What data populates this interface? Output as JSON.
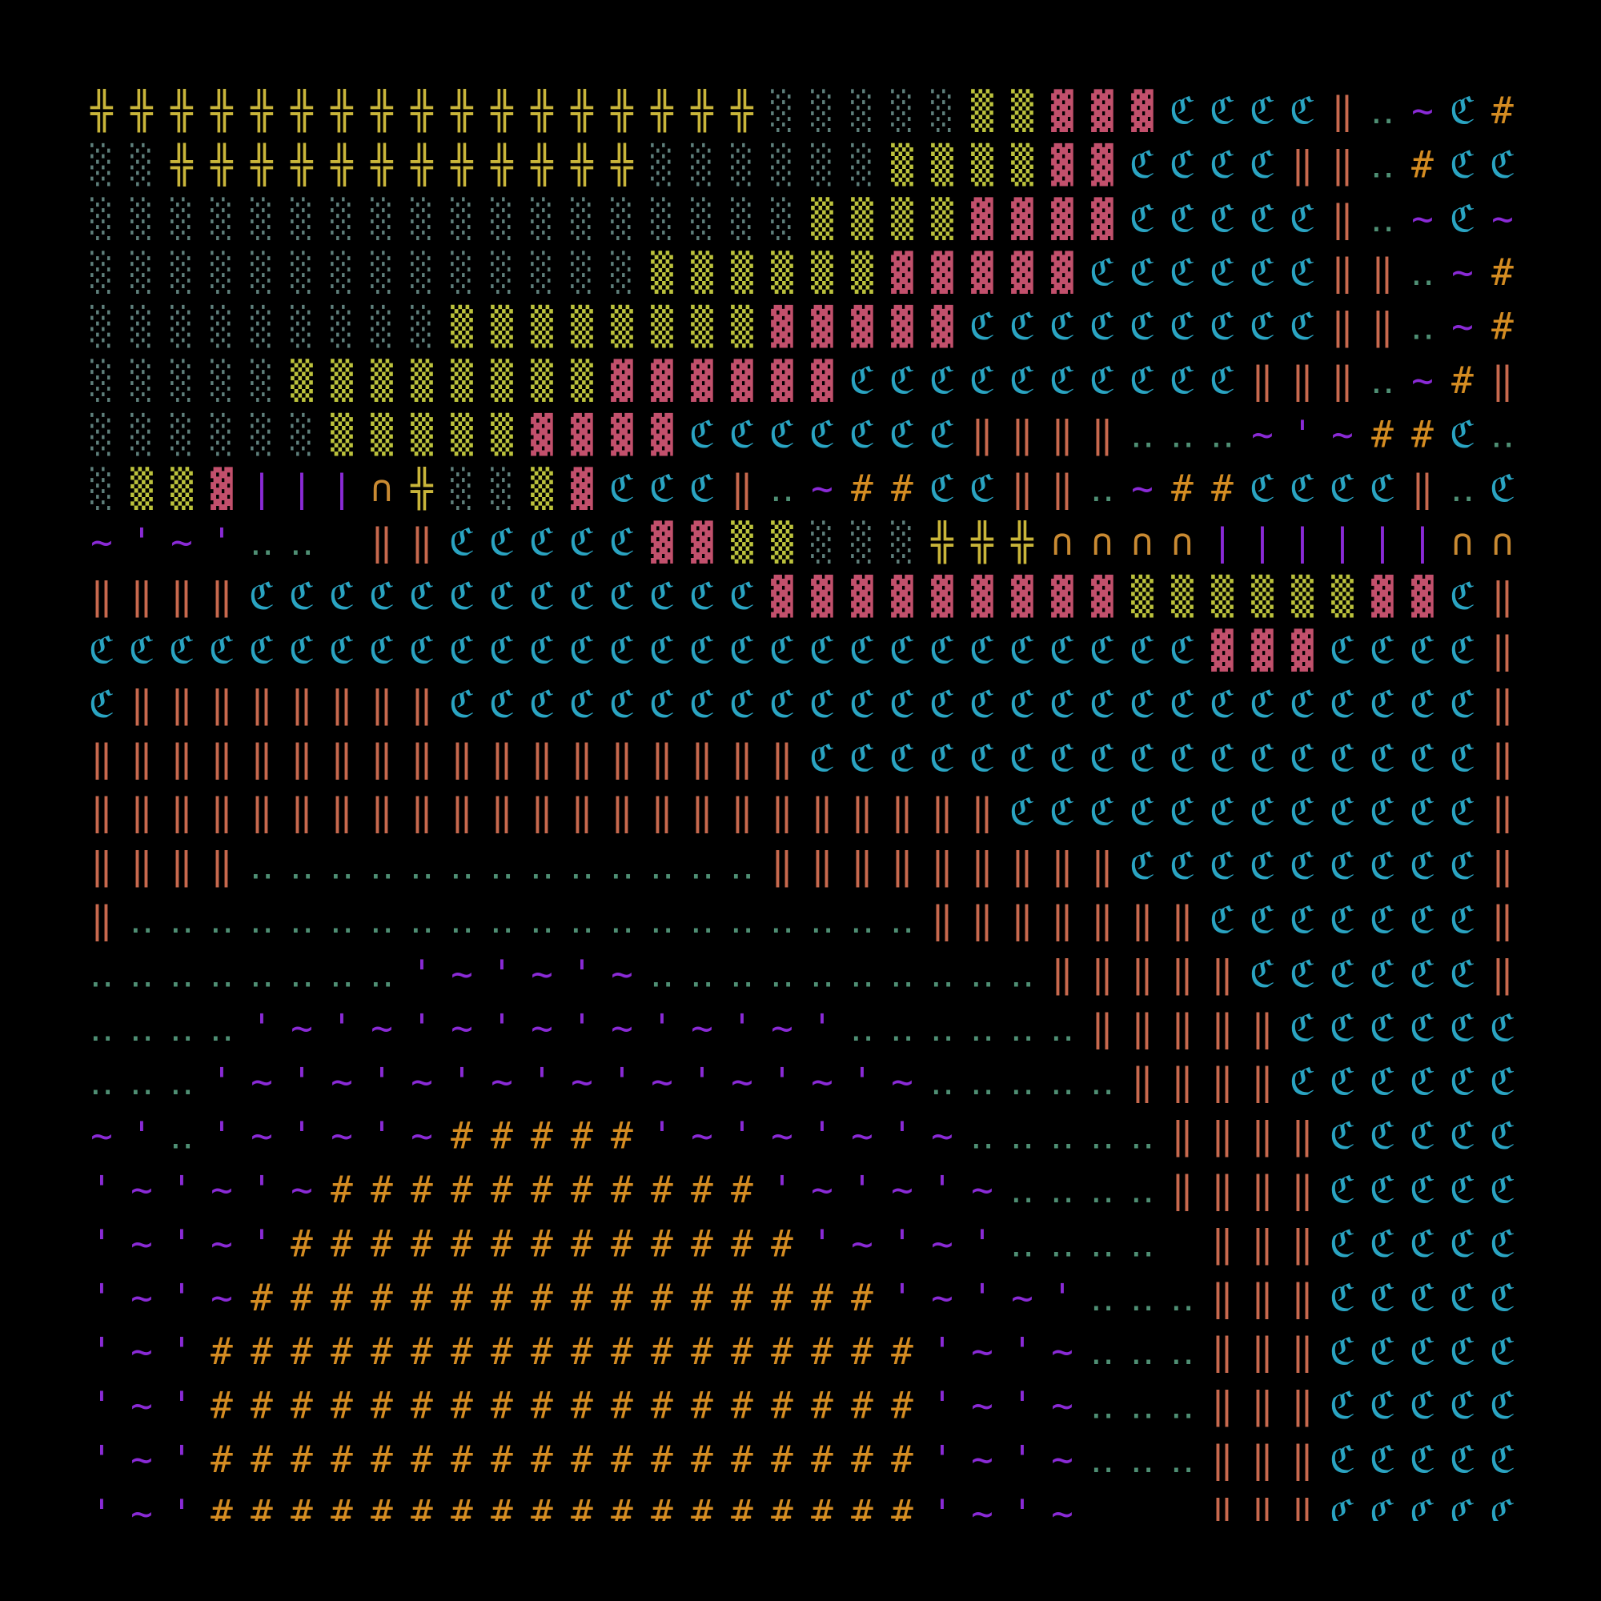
{
  "map": {
    "palette": {
      "╬": "#c9b53a",
      "░": "#5f807c",
      "▒": "#bcc23c",
      "▓": "#c2506c",
      "ℭ": "#2aa4c2",
      "‖": "#c8694e",
      "‥": "#4f8f74",
      "~": "#8a2ad6",
      "'": "#8a2ad6",
      "|": "#8a2ad6",
      "#": "#d48c22",
      "∩": "#c98a32"
    },
    "rows": [
      "╬╬╬╬╬╬╬╬╬╬╬╬╬╬╬╬╬░░░░░▒▒▓▓▓ℭℭℭℭ‖‥~ℭ#",
      "░░╬╬╬╬╬╬╬╬╬╬╬╬░░░░░░▒▒▒▒▓▓ℭℭℭℭ‖‖‥#ℭℭ",
      "░░░░░░░░░░░░░░░░░░▒▒▒▒▓▓▓▓ℭℭℭℭℭ‖‥~ℭ~",
      "░░░░░░░░░░░░░░▒▒▒▒▒▒▓▓▓▓▓ℭℭℭℭℭℭ‖‖‥~#",
      "░░░░░░░░░▒▒▒▒▒▒▒▒▓▓▓▓▓ℭℭℭℭℭℭℭℭℭ‖‖‥~#",
      "░░░░░▒▒▒▒▒▒▒▒▓▓▓▓▓▓ℭℭℭℭℭℭℭℭℭℭ‖‖‖‥~#‖",
      "░░░░░░▒▒▒▒▒▓▓▓▓ℭℭℭℭℭℭℭ‖‖‖‖‥‥‥~'~##ℭ‥",
      "░▒▒▓|||∩╬░░▒▓ℭℭℭ‖‥~##ℭℭ‖‖‥~##ℭℭℭℭ‖‥ℭ",
      "~'~'‥‥ ‖‖ℭℭℭℭℭ▓▓▒▒░░░╬╬╬∩∩∩∩||||||∩∩",
      "‖‖‖‖ℭℭℭℭℭℭℭℭℭℭℭℭℭ▓▓▓▓▓▓▓▓▓▒▒▒▒▒▒▓▓ℭ‖",
      "ℭℭℭℭℭℭℭℭℭℭℭℭℭℭℭℭℭℭℭℭℭℭℭℭℭℭℭℭ▓▓▓ℭℭℭℭ‖",
      "ℭ‖‖‖‖‖‖‖‖ℭℭℭℭℭℭℭℭℭℭℭℭℭℭℭℭℭℭℭℭℭℭℭℭℭℭ‖",
      "‖‖‖‖‖‖‖‖‖‖‖‖‖‖‖‖‖‖ℭℭℭℭℭℭℭℭℭℭℭℭℭℭℭℭℭ‖",
      "‖‖‖‖‖‖‖‖‖‖‖‖‖‖‖‖‖‖‖‖‖‖‖ℭℭℭℭℭℭℭℭℭℭℭℭ‖",
      "‖‖‖‖‥‥‥‥‥‥‥‥‥‥‥‥‥‖‖‖‖‖‖‖‖‖ℭℭℭℭℭℭℭℭℭ‖",
      "‖‥‥‥‥‥‥‥‥‥‥‥‥‥‥‥‥‥‥‥‥‖‖‖‖‖‖‖ℭℭℭℭℭℭℭ‖",
      "‥‥‥‥‥‥‥‥'~'~'~‥‥‥‥‥‥‥‥‥‥‖‖‖‖‖ℭℭℭℭℭℭ‖",
      "‥‥‥‥'~'~'~'~'~'~'~'‥‥‥‥‥‥‖‖‖‖‖ℭℭℭℭℭℭ",
      "‥‥‥'~'~'~'~'~'~'~'~'~‥‥‥‥‥‖‖‖‖ℭℭℭℭℭℭ",
      "~'‥'~'~'~#####'~'~'~'~‥‥‥‥‥‖‖‖‖ℭℭℭℭℭ",
      "'~'~'~###########'~'~'~‥‥‥‥‖‖‖‖ℭℭℭℭℭ",
      "'~'~'#############'~'~'‥‥‥‥ ‖‖‖ℭℭℭℭℭ",
      "'~'~################'~'~'‥‥‥‖‖‖ℭℭℭℭℭ",
      "'~'##################'~'~‥‥‥‖‖‖ℭℭℭℭℭ",
      "'~'##################'~'~‥‥‥‖‖‖ℭℭℭℭℭ",
      "'~'##################'~'~‥‥‥‖‖‖ℭℭℭℭℭ",
      "'~'##################'~'~‥‥‥‖‖‖ℭℭℭℭℭ"
    ]
  }
}
